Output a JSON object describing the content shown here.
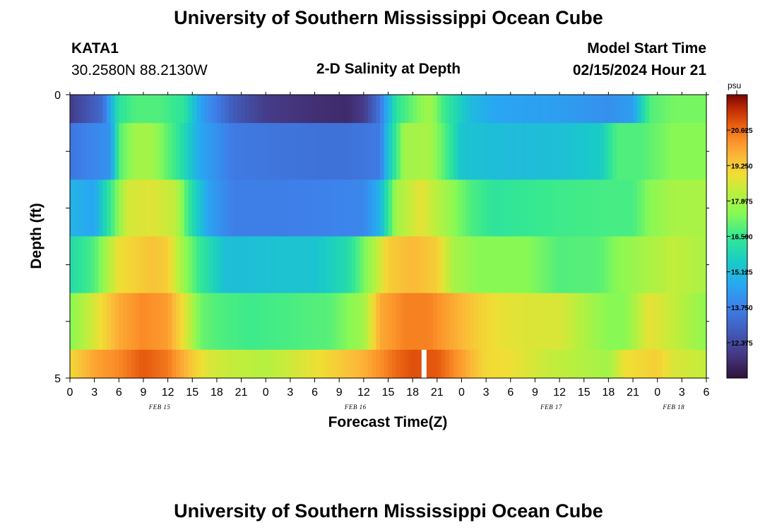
{
  "page": {
    "title": "University of Southern Mississippi Ocean Cube",
    "title_repeat": "University of Southern Mississippi Ocean Cube",
    "station": {
      "id": "KATA1",
      "coords": "30.2580N  88.2130W"
    },
    "plot_title": "2-D Salinity at Depth",
    "model_start": {
      "label": "Model Start Time",
      "value": "02/15/2024 Hour 21"
    }
  },
  "chart_data": {
    "type": "heatmap",
    "title": "2-D Salinity at Depth",
    "xlabel": "Forecast Time(Z)",
    "ylabel": "Depth (ft)",
    "y_tick_labels": [
      "0",
      "5"
    ],
    "ylim": [
      0,
      5
    ],
    "x_range_hours": [
      0,
      78
    ],
    "x_tick_hours": [
      0,
      3,
      6,
      9,
      12,
      15,
      18,
      21,
      24,
      27,
      30,
      33,
      36,
      39,
      42,
      45,
      48,
      51,
      54,
      57,
      60,
      63,
      66,
      69,
      72,
      75,
      78
    ],
    "x_tick_labels": [
      "0",
      "3",
      "6",
      "9",
      "12",
      "15",
      "18",
      "21",
      "0",
      "3",
      "6",
      "9",
      "12",
      "15",
      "18",
      "21",
      "0",
      "3",
      "6",
      "9",
      "12",
      "15",
      "18",
      "21",
      "0",
      "3",
      "6"
    ],
    "day_labels": [
      {
        "text": "FEB 15",
        "hour": 11
      },
      {
        "text": "FEB 16",
        "hour": 35
      },
      {
        "text": "FEB 17",
        "hour": 59
      },
      {
        "text": "FEB 18",
        "hour": 74
      }
    ],
    "depth_layers": [
      0.5,
      1.5,
      2.5,
      3.5,
      4.5,
      5.0
    ],
    "salinity_keypoints": [
      [
        [
          0,
          12.0
        ],
        [
          4,
          13.2
        ],
        [
          6,
          16.3
        ],
        [
          8,
          16.8
        ],
        [
          11,
          16.8
        ],
        [
          14,
          16.3
        ],
        [
          16,
          14.5
        ],
        [
          20,
          12.8
        ],
        [
          24,
          12.0
        ],
        [
          30,
          11.7
        ],
        [
          34,
          11.6
        ],
        [
          36,
          12.0
        ],
        [
          38,
          13.5
        ],
        [
          40,
          16.3
        ],
        [
          44,
          17.8
        ],
        [
          46,
          16.5
        ],
        [
          49,
          15.1
        ],
        [
          52,
          14.6
        ],
        [
          56,
          14.5
        ],
        [
          60,
          14.4
        ],
        [
          66,
          14.1
        ],
        [
          69,
          14.4
        ],
        [
          71,
          16.8
        ],
        [
          74,
          17.2
        ],
        [
          78,
          17.2
        ]
      ],
      [
        [
          0,
          13.5
        ],
        [
          5,
          14.2
        ],
        [
          6,
          16.8
        ],
        [
          8,
          17.8
        ],
        [
          10,
          17.8
        ],
        [
          13,
          16.5
        ],
        [
          16,
          14.6
        ],
        [
          20,
          13.6
        ],
        [
          24,
          13.5
        ],
        [
          30,
          13.4
        ],
        [
          34,
          13.4
        ],
        [
          38,
          13.6
        ],
        [
          39,
          15.3
        ],
        [
          41,
          17.8
        ],
        [
          44,
          17.9
        ],
        [
          46,
          16.8
        ],
        [
          48,
          15.3
        ],
        [
          54,
          15.1
        ],
        [
          60,
          15.2
        ],
        [
          65,
          15.5
        ],
        [
          67,
          16.8
        ],
        [
          70,
          16.8
        ],
        [
          74,
          17.4
        ],
        [
          78,
          17.4
        ]
      ],
      [
        [
          0,
          14.9
        ],
        [
          3,
          14.6
        ],
        [
          5,
          16.5
        ],
        [
          7,
          18.5
        ],
        [
          10,
          18.7
        ],
        [
          13,
          18.2
        ],
        [
          15,
          16.0
        ],
        [
          17,
          14.5
        ],
        [
          20,
          13.7
        ],
        [
          26,
          13.7
        ],
        [
          32,
          13.8
        ],
        [
          36,
          13.9
        ],
        [
          38,
          14.9
        ],
        [
          40,
          17.8
        ],
        [
          43,
          18.8
        ],
        [
          46,
          17.8
        ],
        [
          49,
          16.8
        ],
        [
          52,
          16.3
        ],
        [
          56,
          16.5
        ],
        [
          60,
          16.6
        ],
        [
          66,
          16.7
        ],
        [
          69,
          16.7
        ],
        [
          71,
          17.4
        ],
        [
          74,
          17.9
        ],
        [
          78,
          17.9
        ]
      ],
      [
        [
          0,
          16.0
        ],
        [
          3,
          16.8
        ],
        [
          6,
          18.9
        ],
        [
          10,
          19.4
        ],
        [
          12,
          19.2
        ],
        [
          14,
          17.6
        ],
        [
          16,
          16.4
        ],
        [
          19,
          15.2
        ],
        [
          22,
          15.2
        ],
        [
          26,
          15.3
        ],
        [
          30,
          15.3
        ],
        [
          34,
          16.0
        ],
        [
          37,
          17.8
        ],
        [
          39,
          19.2
        ],
        [
          42,
          19.6
        ],
        [
          45,
          19.2
        ],
        [
          47,
          17.9
        ],
        [
          50,
          17.4
        ],
        [
          56,
          17.4
        ],
        [
          60,
          16.8
        ],
        [
          65,
          16.9
        ],
        [
          67,
          17.4
        ],
        [
          70,
          17.8
        ],
        [
          74,
          18.3
        ],
        [
          78,
          17.9
        ]
      ],
      [
        [
          0,
          17.4
        ],
        [
          3,
          18.6
        ],
        [
          6,
          19.8
        ],
        [
          9,
          20.3
        ],
        [
          12,
          20.0
        ],
        [
          14,
          18.8
        ],
        [
          16,
          17.1
        ],
        [
          18,
          16.8
        ],
        [
          22,
          16.6
        ],
        [
          26,
          16.7
        ],
        [
          32,
          16.9
        ],
        [
          36,
          17.8
        ],
        [
          38,
          19.8
        ],
        [
          41,
          20.4
        ],
        [
          44,
          20.4
        ],
        [
          47,
          19.8
        ],
        [
          50,
          19.2
        ],
        [
          53,
          18.8
        ],
        [
          57,
          18.6
        ],
        [
          60,
          18.6
        ],
        [
          66,
          17.4
        ],
        [
          68,
          17.4
        ],
        [
          71,
          18.8
        ],
        [
          74,
          18.3
        ],
        [
          78,
          17.5
        ]
      ],
      [
        [
          0,
          19.0
        ],
        [
          3,
          19.9
        ],
        [
          6,
          20.3
        ],
        [
          9,
          20.9
        ],
        [
          12,
          20.5
        ],
        [
          15,
          19.3
        ],
        [
          17,
          18.6
        ],
        [
          20,
          18.3
        ],
        [
          24,
          18.1
        ],
        [
          30,
          18.8
        ],
        [
          36,
          19.7
        ],
        [
          40,
          20.7
        ],
        [
          42,
          21.0
        ],
        [
          45,
          20.9
        ],
        [
          48,
          20.0
        ],
        [
          51,
          19.0
        ],
        [
          54,
          18.9
        ],
        [
          58,
          18.4
        ],
        [
          62,
          18.1
        ],
        [
          66,
          17.8
        ],
        [
          68,
          18.9
        ],
        [
          72,
          19.2
        ],
        [
          74,
          18.6
        ],
        [
          78,
          18.3
        ]
      ]
    ],
    "missing_marker_hour": 43.4,
    "colorbar": {
      "units": "psu",
      "range": [
        11.0,
        22.0
      ],
      "tick_labels": [
        "20.625",
        "19.250",
        "17.875",
        "16.500",
        "15.125",
        "13.750",
        "12.375"
      ],
      "tick_values": [
        20.625,
        19.25,
        17.875,
        16.5,
        15.125,
        13.75,
        12.375
      ]
    }
  }
}
